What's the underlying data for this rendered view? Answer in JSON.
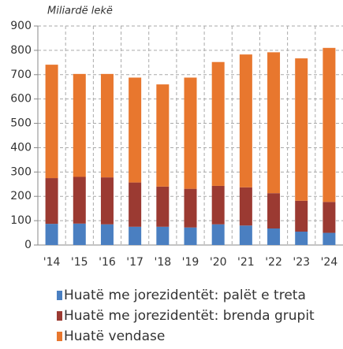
{
  "chart_data": {
    "type": "stacked_bar",
    "y_axis_label": "Miliardë lekë",
    "categories": [
      "'14",
      "'15",
      "'16",
      "'17",
      "'18",
      "'19",
      "'20",
      "'21",
      "'22",
      "'23",
      "'24"
    ],
    "series": [
      {
        "name": "Huatë me jorezidentët: palët e treta",
        "color": "#4a7fc1",
        "values": [
          87,
          88,
          85,
          75,
          75,
          72,
          85,
          80,
          68,
          55,
          50
        ]
      },
      {
        "name": "Huatë me jorezidentët: brenda grupit",
        "color": "#9b3a32",
        "values": [
          188,
          192,
          193,
          182,
          165,
          159,
          158,
          157,
          145,
          127,
          127
        ]
      },
      {
        "name": "Huatë vendase",
        "color": "#e8772e",
        "values": [
          466,
          423,
          425,
          431,
          420,
          457,
          509,
          546,
          579,
          585,
          633
        ]
      }
    ],
    "ylim": [
      0,
      900
    ],
    "yticks": [
      0,
      100,
      200,
      300,
      400,
      500,
      600,
      700,
      800,
      900
    ],
    "grid": true
  }
}
